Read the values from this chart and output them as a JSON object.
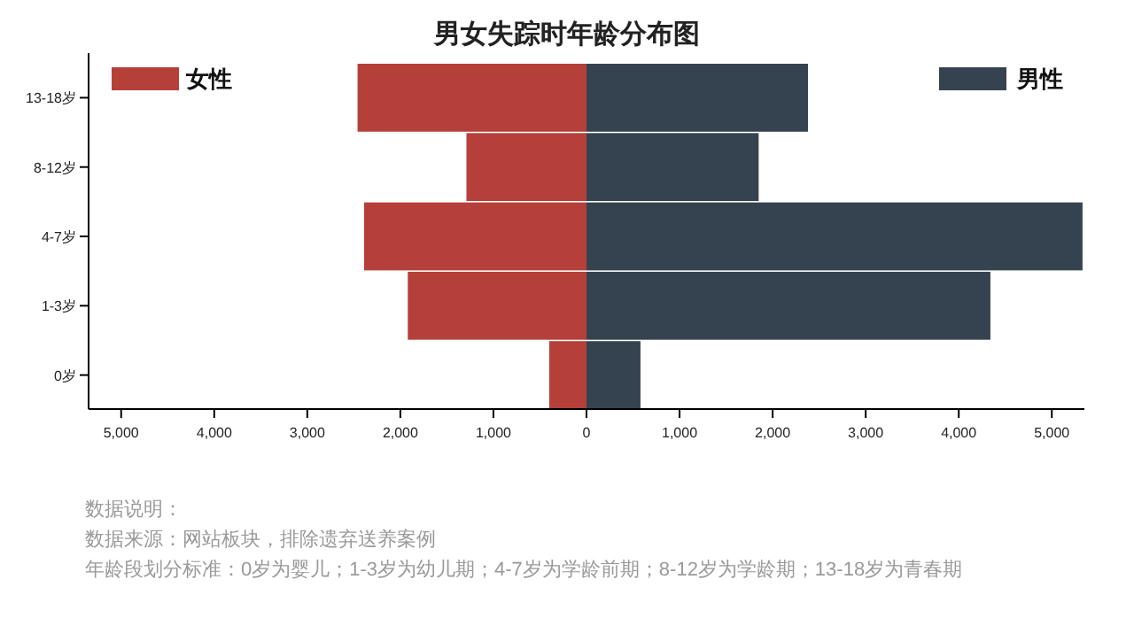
{
  "chart_data": {
    "type": "bar",
    "orientation": "horizontal",
    "stacked": true,
    "title": "男女失踪时年龄分布图",
    "categories": [
      "13-18岁",
      "8-12岁",
      "4-7岁",
      "1-3岁",
      "0岁"
    ],
    "series": [
      {
        "name": "女性",
        "color": "#b5403a",
        "values": [
          -2460,
          -1290,
          -2390,
          -1920,
          -400
        ]
      },
      {
        "name": "男性",
        "color": "#34434f",
        "values": [
          2380,
          1850,
          5330,
          4340,
          580
        ]
      }
    ],
    "xlim": [
      -5350,
      5350
    ],
    "xticks": [
      {
        "value": -5000,
        "label": "5,000"
      },
      {
        "value": -4000,
        "label": "4,000"
      },
      {
        "value": -3000,
        "label": "3,000"
      },
      {
        "value": -2000,
        "label": "2,000"
      },
      {
        "value": -1000,
        "label": "1,000"
      },
      0,
      {
        "value": 1000,
        "label": "1,000"
      },
      {
        "value": 2000,
        "label": "2,000"
      },
      {
        "value": 3000,
        "label": "3,000"
      },
      {
        "value": 4000,
        "label": "4,000"
      },
      {
        "value": 5000,
        "label": "5,000"
      }
    ],
    "grid": false,
    "legend": "top",
    "annotations": [
      "数据说明：",
      "数据来源：网站板块，排除遗弃送养案例",
      "年龄段划分标准：0岁为婴儿；1-3岁为幼儿期；4-7岁为学龄前期；8-12岁为学龄期；13-18岁为青春期"
    ]
  }
}
